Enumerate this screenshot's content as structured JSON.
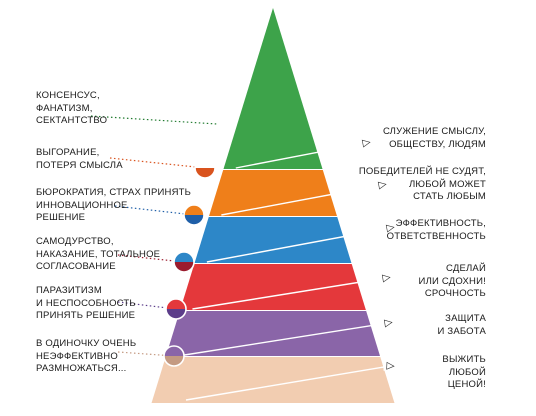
{
  "pyramid": {
    "levels": [
      {
        "color": "#3da34a"
      },
      {
        "color": "#ef7f1a"
      },
      {
        "color": "#2d87c8"
      },
      {
        "color": "#e4383b"
      },
      {
        "color": "#8a65a8"
      },
      {
        "color": "#f2cdb1"
      }
    ],
    "outline_color": "#ffffff"
  },
  "left_labels": [
    {
      "lines": [
        "КОНСЕНСУС,",
        "ФАНАТИЗМ,",
        "СЕКТАНТСТВО"
      ],
      "color": "#1f7a2e"
    },
    {
      "lines": [
        "ВЫГОРАНИЕ,",
        "ПОТЕРЯ СМЫСЛА"
      ],
      "color": "#d9531e"
    },
    {
      "lines": [
        "БЮРОКРАТИЯ, СТРАХ ПРИНЯТЬ",
        "ИННОВАЦИОННОЕ",
        "РЕШЕНИЕ"
      ],
      "color": "#1f5fa8"
    },
    {
      "lines": [
        "САМОДУРСТВО,",
        "НАКАЗАНИЕ, ТОТАЛЬНОЕ",
        "СОГЛАСОВАНИЕ"
      ],
      "color": "#9b1b2e"
    },
    {
      "lines": [
        "ПАРАЗИТИЗМ",
        "И НЕСПОСОБНОСТЬ",
        "ПРИНЯТЬ РЕШЕНИЕ"
      ],
      "color": "#5c3d8a"
    },
    {
      "lines": [
        "В ОДИНОЧКУ ОЧЕНЬ",
        "НЕЭФФЕКТИВНО",
        "РАЗМНОЖАТЬСЯ..."
      ],
      "color": "#c49a82"
    }
  ],
  "right_labels": [
    {
      "lines": [
        "СЛУЖЕНИЕ СМЫСЛУ,",
        "ОБЩЕСТВУ, ЛЮДЯМ"
      ]
    },
    {
      "lines": [
        "ПОБЕДИТЕЛЕЙ НЕ СУДЯТ,",
        "ЛЮБОЙ МОЖЕТ",
        "СТАТЬ ЛЮБЫМ"
      ]
    },
    {
      "lines": [
        "ЭФФЕКТИВНОСТЬ,",
        "ОТВЕТСТВЕННОСТЬ"
      ]
    },
    {
      "lines": [
        "СДЕЛАЙ",
        "ИЛИ СДОХНИ!",
        "СРОЧНОСТЬ"
      ]
    },
    {
      "lines": [
        "ЗАЩИТА",
        "И ЗАБОТА"
      ]
    },
    {
      "lines": [
        "ВЫЖИТЬ",
        "ЛЮБОЙ",
        "ЦЕНОЙ!"
      ]
    }
  ]
}
